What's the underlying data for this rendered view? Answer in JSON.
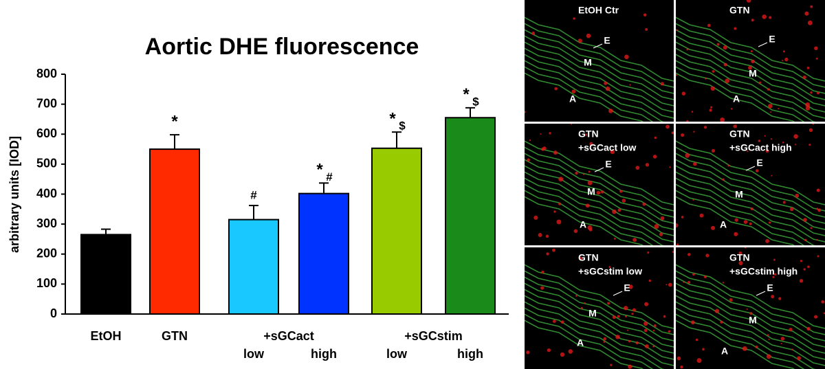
{
  "chart_data": {
    "type": "bar",
    "title": "Aortic DHE fluorescence",
    "y_label": "arbitrary units [IOD]",
    "categories": [
      "EtOH",
      "GTN",
      "low",
      "high",
      "low",
      "high"
    ],
    "category_groups": [
      {
        "label": "+sGCact"
      },
      {
        "label": "+sGCstim"
      }
    ],
    "values": [
      265,
      550,
      315,
      402,
      553,
      655
    ],
    "errors": [
      18,
      48,
      47,
      35,
      54,
      33
    ],
    "colors": [
      "#000000",
      "#ff2a00",
      "#19c8ff",
      "#0033ff",
      "#99cc00",
      "#1a8a1a"
    ],
    "annotations": [
      null,
      [
        "*"
      ],
      [
        "#"
      ],
      [
        "*",
        "#"
      ],
      [
        "*",
        "$"
      ],
      [
        "*",
        "$"
      ]
    ],
    "ylim": [
      0,
      800
    ],
    "yticks": [
      0,
      100,
      200,
      300,
      400,
      500,
      600,
      700,
      800
    ]
  },
  "panels": [
    {
      "title": [
        "EtOH Ctr"
      ],
      "labels": [
        "E",
        "M",
        "A"
      ]
    },
    {
      "title": [
        "GTN"
      ],
      "labels": [
        "E",
        "M",
        "A"
      ]
    },
    {
      "title": [
        "GTN",
        "+sGCact low"
      ],
      "labels": [
        "E",
        "M",
        "A"
      ]
    },
    {
      "title": [
        "GTN",
        "+sGCact high"
      ],
      "labels": [
        "E",
        "M",
        "A"
      ]
    },
    {
      "title": [
        "GTN",
        "+sGCstim low"
      ],
      "labels": [
        "E",
        "M",
        "A"
      ]
    },
    {
      "title": [
        "GTN",
        "+sGCstim high"
      ],
      "labels": [
        "E",
        "M",
        "A"
      ]
    }
  ]
}
